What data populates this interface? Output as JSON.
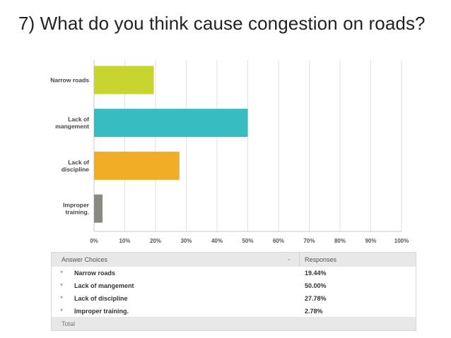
{
  "title": "7) What do you think cause congestion on roads?",
  "chart_data": {
    "type": "bar",
    "orientation": "horizontal",
    "categories": [
      [
        "Narrow roads"
      ],
      [
        "Lack of",
        "mangement"
      ],
      [
        "Lack of",
        "discipline"
      ],
      [
        "Improper",
        "training."
      ]
    ],
    "values": [
      19.44,
      50.0,
      27.78,
      2.78
    ],
    "colors": [
      "#c8d530",
      "#37bcc2",
      "#f2ad27",
      "#8a8a80"
    ],
    "xlim": [
      0,
      100
    ],
    "xticks": [
      "0%",
      "10%",
      "20%",
      "30%",
      "40%",
      "50%",
      "60%",
      "70%",
      "80%",
      "90%",
      "100%"
    ],
    "grid": true,
    "xlabel": "",
    "ylabel": ""
  },
  "table": {
    "header_choice": "Answer Choices",
    "header_responses": "Responses",
    "rows": [
      {
        "choice": "Narrow roads",
        "response": "19.44%"
      },
      {
        "choice": "Lack of mangement",
        "response": "50.00%"
      },
      {
        "choice": "Lack of discipline",
        "response": "27.78%"
      },
      {
        "choice": "Improper training.",
        "response": "2.78%"
      }
    ],
    "footer": "Total"
  }
}
